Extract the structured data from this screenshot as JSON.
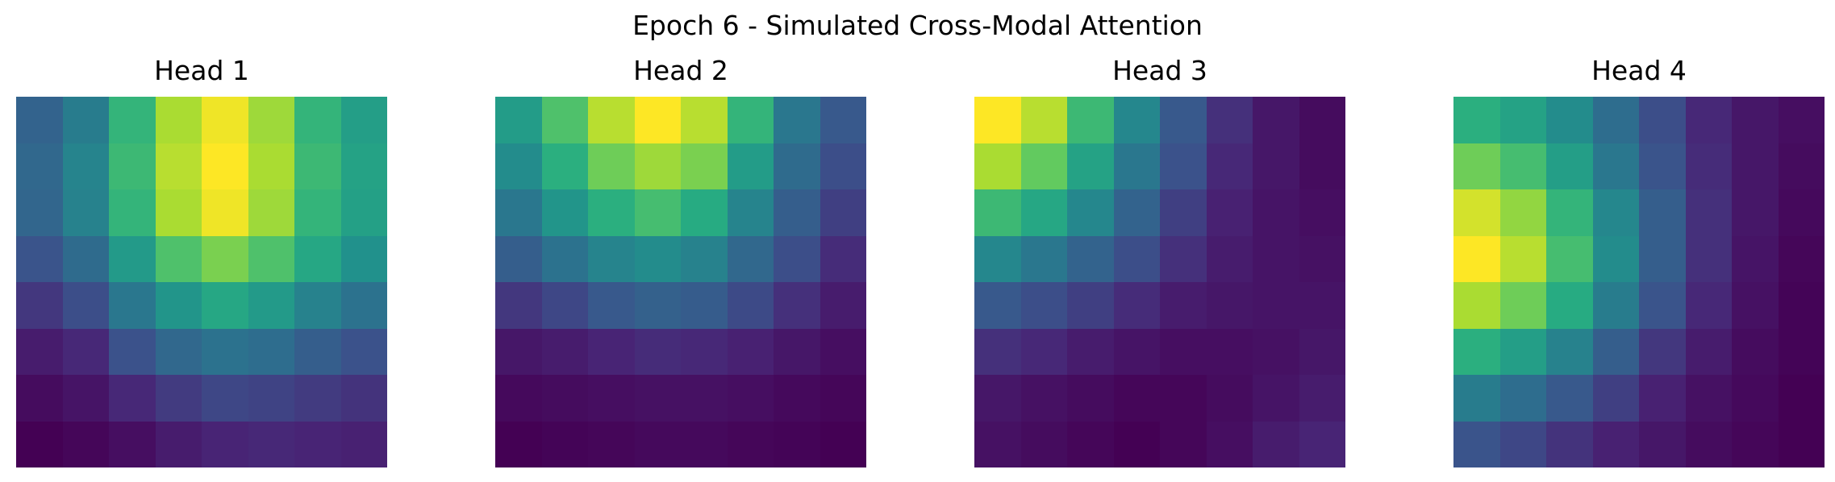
{
  "chart_data": {
    "type": "heatmap",
    "title": "Epoch 6 - Simulated Cross-Modal Attention",
    "colormap": "viridis",
    "value_range": [
      0,
      1
    ],
    "panels": [
      {
        "title": "Head 1",
        "values": [
          [
            0.32,
            0.42,
            0.66,
            0.88,
            0.98,
            0.86,
            0.66,
            0.56
          ],
          [
            0.34,
            0.45,
            0.68,
            0.9,
            1.0,
            0.88,
            0.68,
            0.58
          ],
          [
            0.33,
            0.44,
            0.66,
            0.88,
            0.98,
            0.86,
            0.66,
            0.57
          ],
          [
            0.26,
            0.35,
            0.54,
            0.72,
            0.8,
            0.72,
            0.6,
            0.5
          ],
          [
            0.18,
            0.24,
            0.4,
            0.52,
            0.6,
            0.54,
            0.44,
            0.38
          ],
          [
            0.1,
            0.14,
            0.25,
            0.34,
            0.38,
            0.36,
            0.3,
            0.25
          ],
          [
            0.04,
            0.07,
            0.14,
            0.19,
            0.22,
            0.21,
            0.19,
            0.17
          ],
          [
            0.0,
            0.02,
            0.05,
            0.1,
            0.13,
            0.14,
            0.13,
            0.12
          ]
        ]
      },
      {
        "title": "Head 2",
        "values": [
          [
            0.55,
            0.72,
            0.9,
            1.0,
            0.9,
            0.66,
            0.4,
            0.28
          ],
          [
            0.48,
            0.64,
            0.78,
            0.86,
            0.8,
            0.55,
            0.35,
            0.24
          ],
          [
            0.4,
            0.52,
            0.64,
            0.7,
            0.62,
            0.45,
            0.3,
            0.2
          ],
          [
            0.3,
            0.38,
            0.45,
            0.48,
            0.44,
            0.34,
            0.24,
            0.15
          ],
          [
            0.18,
            0.22,
            0.28,
            0.31,
            0.29,
            0.23,
            0.16,
            0.1
          ],
          [
            0.08,
            0.1,
            0.13,
            0.15,
            0.14,
            0.12,
            0.08,
            0.05
          ],
          [
            0.03,
            0.04,
            0.05,
            0.06,
            0.06,
            0.05,
            0.03,
            0.02
          ],
          [
            0.0,
            0.01,
            0.02,
            0.03,
            0.03,
            0.02,
            0.01,
            0.0
          ]
        ]
      },
      {
        "title": "Head 3",
        "values": [
          [
            1.0,
            0.9,
            0.68,
            0.46,
            0.28,
            0.16,
            0.08,
            0.04
          ],
          [
            0.88,
            0.76,
            0.58,
            0.4,
            0.25,
            0.14,
            0.08,
            0.04
          ],
          [
            0.68,
            0.6,
            0.46,
            0.32,
            0.2,
            0.12,
            0.07,
            0.05
          ],
          [
            0.46,
            0.4,
            0.32,
            0.24,
            0.16,
            0.1,
            0.07,
            0.06
          ],
          [
            0.28,
            0.24,
            0.2,
            0.15,
            0.1,
            0.08,
            0.07,
            0.07
          ],
          [
            0.16,
            0.14,
            0.1,
            0.07,
            0.05,
            0.05,
            0.06,
            0.08
          ],
          [
            0.08,
            0.06,
            0.04,
            0.02,
            0.02,
            0.04,
            0.07,
            0.1
          ],
          [
            0.06,
            0.04,
            0.02,
            0.0,
            0.02,
            0.05,
            0.1,
            0.13
          ]
        ]
      },
      {
        "title": "Head 4",
        "values": [
          [
            0.64,
            0.58,
            0.48,
            0.36,
            0.24,
            0.14,
            0.08,
            0.05
          ],
          [
            0.78,
            0.7,
            0.56,
            0.4,
            0.26,
            0.15,
            0.08,
            0.04
          ],
          [
            0.94,
            0.84,
            0.66,
            0.46,
            0.3,
            0.16,
            0.08,
            0.03
          ],
          [
            1.0,
            0.9,
            0.7,
            0.48,
            0.3,
            0.16,
            0.07,
            0.02
          ],
          [
            0.88,
            0.78,
            0.62,
            0.42,
            0.26,
            0.14,
            0.06,
            0.01
          ],
          [
            0.64,
            0.56,
            0.44,
            0.3,
            0.18,
            0.1,
            0.04,
            0.01
          ],
          [
            0.42,
            0.36,
            0.28,
            0.2,
            0.12,
            0.06,
            0.03,
            0.0
          ],
          [
            0.26,
            0.22,
            0.17,
            0.12,
            0.08,
            0.04,
            0.02,
            0.0
          ]
        ]
      }
    ]
  }
}
